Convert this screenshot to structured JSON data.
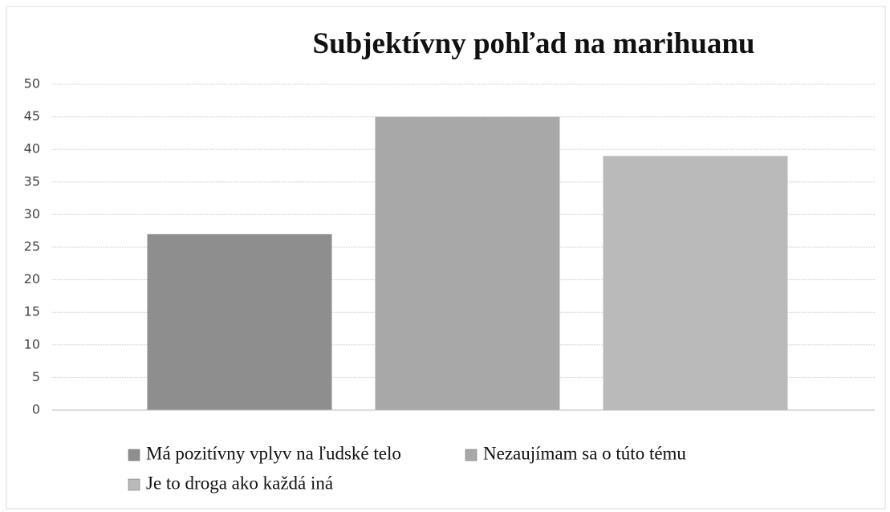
{
  "chart_data": {
    "type": "bar",
    "title": "Subjektívny pohľad na marihuanu",
    "categories": [
      null
    ],
    "series": [
      {
        "name": "Má pozitívny vplyv na ľudské telo",
        "color": "#8e8e8e",
        "values": [
          27
        ]
      },
      {
        "name": "Nezaujímam sa o túto tému",
        "color": "#a8a8a8",
        "values": [
          45
        ]
      },
      {
        "name": "Je to droga ako každá iná",
        "color": "#bababa",
        "values": [
          39
        ]
      }
    ],
    "ylim": [
      0,
      50
    ],
    "yticks": [
      0,
      5,
      10,
      15,
      20,
      25,
      30,
      35,
      40,
      45,
      50
    ],
    "grid": true
  }
}
